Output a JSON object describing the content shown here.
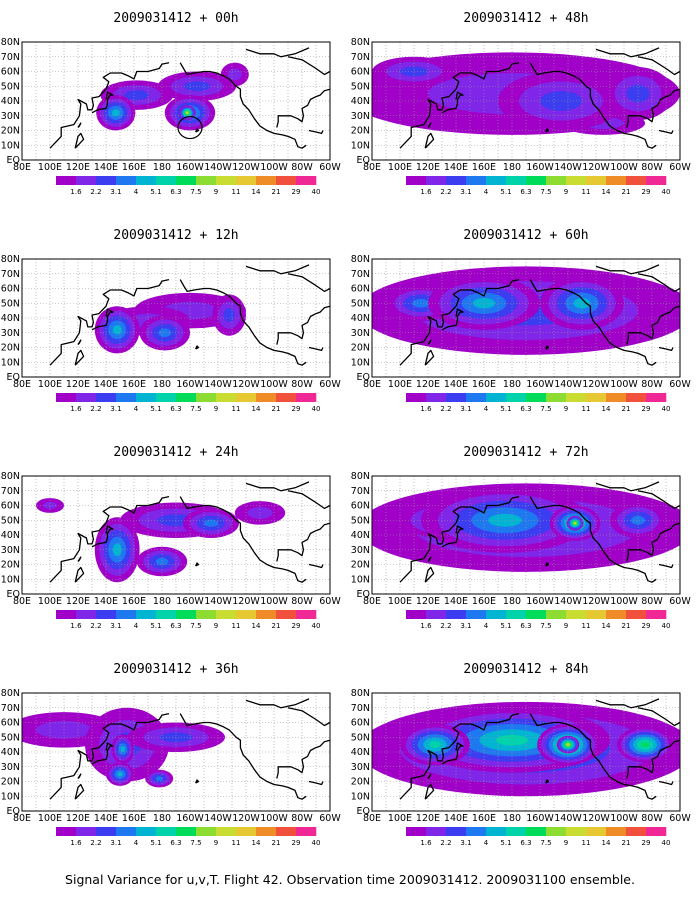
{
  "figure": {
    "caption": "Signal Variance for u,v,T. Flight 42. Observation time 2009031412. 2009031100 ensemble.",
    "lon_ticks": [
      "80E",
      "100E",
      "120E",
      "140E",
      "160E",
      "180",
      "160W",
      "140W",
      "120W",
      "100W",
      "80W",
      "60W"
    ],
    "lat_ticks": [
      "EQ",
      "10N",
      "20N",
      "30N",
      "40N",
      "50N",
      "60N",
      "70N",
      "80N"
    ],
    "colorbar": {
      "levels": [
        "1.6",
        "2.2",
        "3.1",
        "4",
        "5.1",
        "6.3",
        "7.5",
        "9",
        "11",
        "14",
        "21",
        "29",
        "40"
      ],
      "colors": [
        "#a000c8",
        "#7f26e8",
        "#3c3cf0",
        "#1e78f0",
        "#00b4d2",
        "#00d2aa",
        "#00dc5a",
        "#8cdc32",
        "#c8dc32",
        "#e6c832",
        "#f08c28",
        "#f0503c",
        "#f02896"
      ]
    },
    "land_color": "#000000",
    "grid": true
  },
  "panels": [
    {
      "title": "2009031412 + 00h"
    },
    {
      "title": "2009031412 + 48h"
    },
    {
      "title": "2009031412 + 12h"
    },
    {
      "title": "2009031412 + 60h"
    },
    {
      "title": "2009031412 + 24h"
    },
    {
      "title": "2009031412 + 72h"
    },
    {
      "title": "2009031412 + 36h"
    },
    {
      "title": "2009031412 + 84h"
    }
  ]
}
